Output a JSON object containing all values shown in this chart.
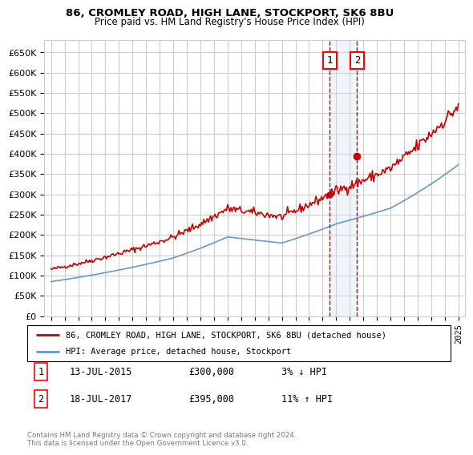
{
  "title1": "86, CROMLEY ROAD, HIGH LANE, STOCKPORT, SK6 8BU",
  "title2": "Price paid vs. HM Land Registry's House Price Index (HPI)",
  "ylim": [
    0,
    680000
  ],
  "yticks": [
    0,
    50000,
    100000,
    150000,
    200000,
    250000,
    300000,
    350000,
    400000,
    450000,
    500000,
    550000,
    600000,
    650000
  ],
  "xlim_start": 1994.5,
  "xlim_end": 2025.5,
  "sale1_date": 2015.53,
  "sale1_price": 300000,
  "sale2_date": 2017.54,
  "sale2_price": 395000,
  "line_color_red": "#cc0000",
  "line_color_blue": "#6699cc",
  "shade_color": "#cce0f0",
  "background_color": "#ffffff",
  "grid_color": "#cccccc",
  "legend_label_red": "86, CROMLEY ROAD, HIGH LANE, STOCKPORT, SK6 8BU (detached house)",
  "legend_label_blue": "HPI: Average price, detached house, Stockport",
  "table_row1": [
    "1",
    "13-JUL-2015",
    "£300,000",
    "3% ↓ HPI"
  ],
  "table_row2": [
    "2",
    "18-JUL-2017",
    "£395,000",
    "11% ↑ HPI"
  ],
  "footnote": "Contains HM Land Registry data © Crown copyright and database right 2024.\nThis data is licensed under the Open Government Licence v3.0."
}
